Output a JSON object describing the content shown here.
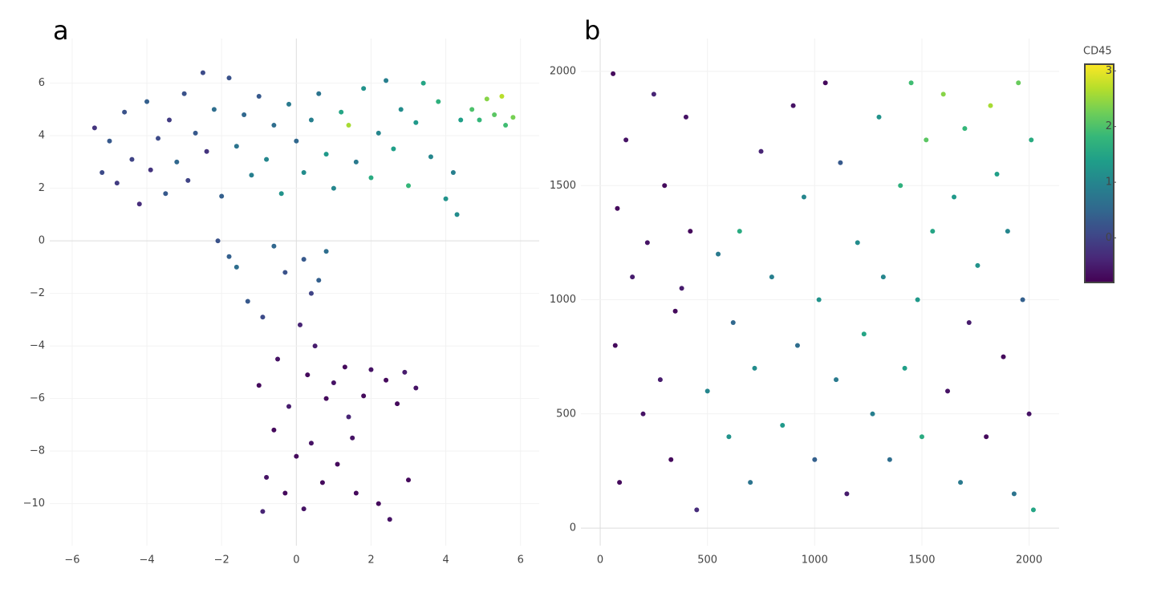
{
  "chart_data": [
    {
      "type": "scatter",
      "panel_label": "a",
      "xlim": [
        -6.6,
        6.5
      ],
      "ylim": [
        -11.6,
        7.7
      ],
      "xticks": [
        {
          "value": -6,
          "label": "−6"
        },
        {
          "value": -4,
          "label": "−4"
        },
        {
          "value": -2,
          "label": "−2"
        },
        0,
        2,
        4,
        6
      ],
      "yticks": [
        {
          "value": -10,
          "label": "−10"
        },
        {
          "value": -8,
          "label": "−8"
        },
        {
          "value": -6,
          "label": "−6"
        },
        {
          "value": -4,
          "label": "−4"
        },
        {
          "value": -2,
          "label": "−2"
        },
        0,
        2,
        4,
        6
      ],
      "grid": true,
      "zeroline": true,
      "colorscale": "viridis",
      "x": [
        -5.4,
        -5.2,
        -5.0,
        -4.8,
        -4.6,
        -4.4,
        -4.2,
        -4.0,
        -3.9,
        -3.7,
        -3.5,
        -3.4,
        -3.2,
        -3.0,
        -2.9,
        -2.7,
        -2.5,
        -2.4,
        -2.2,
        -2.0,
        -1.8,
        -1.6,
        -1.4,
        -1.2,
        -1.0,
        -0.8,
        -0.6,
        -0.4,
        -0.2,
        0.0,
        0.2,
        0.4,
        0.6,
        0.8,
        1.0,
        1.2,
        1.4,
        1.6,
        1.8,
        2.0,
        2.2,
        2.4,
        2.6,
        2.8,
        3.0,
        3.2,
        3.4,
        3.6,
        3.8,
        4.0,
        4.2,
        4.3,
        4.4,
        4.7,
        4.9,
        5.1,
        5.3,
        5.5,
        5.6,
        5.8,
        -2.1,
        -1.8,
        -1.6,
        -1.3,
        -0.9,
        -0.6,
        -0.3,
        0.2,
        0.4,
        0.6,
        0.8,
        -1.0,
        -0.8,
        -0.9,
        -0.6,
        -0.5,
        -0.3,
        -0.2,
        0.0,
        0.1,
        0.2,
        0.3,
        0.4,
        0.5,
        0.7,
        0.8,
        1.0,
        1.1,
        1.3,
        1.4,
        1.6,
        1.8,
        2.0,
        2.2,
        2.4,
        2.5,
        2.7,
        2.9,
        3.0,
        3.2,
        1.5
      ],
      "y": [
        4.3,
        2.6,
        3.8,
        2.2,
        4.9,
        3.1,
        1.4,
        5.3,
        2.7,
        3.9,
        1.8,
        4.6,
        3.0,
        5.6,
        2.3,
        4.1,
        6.4,
        3.4,
        5.0,
        1.7,
        6.2,
        3.6,
        4.8,
        2.5,
        5.5,
        3.1,
        4.4,
        1.8,
        5.2,
        3.8,
        2.6,
        4.6,
        5.6,
        3.3,
        2.0,
        4.9,
        4.4,
        3.0,
        5.8,
        2.4,
        4.1,
        6.1,
        3.5,
        5.0,
        2.1,
        4.5,
        6.0,
        3.2,
        5.3,
        1.6,
        2.6,
        1.0,
        4.6,
        5.0,
        4.6,
        5.4,
        4.8,
        5.5,
        4.4,
        4.7,
        0.0,
        -0.6,
        -1.0,
        -2.3,
        -2.9,
        -0.2,
        -1.2,
        -0.7,
        -2.0,
        -1.5,
        -0.4,
        -5.5,
        -9.0,
        -10.3,
        -7.2,
        -4.5,
        -9.6,
        -6.3,
        -8.2,
        -3.2,
        -10.2,
        -5.1,
        -7.7,
        -4.0,
        -9.2,
        -6.0,
        -5.4,
        -8.5,
        -4.8,
        -6.7,
        -9.6,
        -5.9,
        -4.9,
        -10.0,
        -5.3,
        -10.6,
        -6.2,
        -5.0,
        -9.1,
        -5.6,
        -7.5
      ],
      "color_values": [
        -0.2,
        0.1,
        0.3,
        -0.1,
        0.2,
        0.0,
        -0.3,
        0.4,
        -0.2,
        0.1,
        0.3,
        -0.1,
        0.5,
        0.2,
        0.0,
        0.3,
        0.1,
        -0.2,
        0.6,
        0.4,
        0.2,
        0.7,
        0.5,
        0.9,
        0.3,
        1.0,
        0.6,
        1.2,
        0.8,
        0.5,
        1.1,
        0.9,
        0.7,
        1.3,
        1.0,
        1.5,
        2.6,
        0.8,
        1.2,
        1.6,
        1.0,
        0.9,
        1.4,
        1.1,
        1.8,
        1.3,
        1.5,
        1.0,
        1.7,
        1.2,
        0.9,
        1.1,
        1.4,
        2.0,
        1.8,
        2.4,
        2.1,
        2.7,
        1.9,
        2.3,
        0.2,
        0.4,
        0.6,
        0.3,
        0.1,
        0.5,
        0.2,
        0.3,
        0.0,
        0.4,
        0.6,
        -0.7,
        -0.6,
        -0.4,
        -0.7,
        -0.6,
        -0.7,
        -0.5,
        -0.7,
        -0.4,
        -0.6,
        -0.7,
        -0.6,
        -0.5,
        -0.7,
        -0.7,
        -0.6,
        -0.7,
        -0.7,
        -0.4,
        -0.7,
        -0.7,
        -0.6,
        -0.7,
        -0.7,
        -0.6,
        -0.7,
        -0.5,
        -0.7,
        -0.6,
        -0.6
      ]
    },
    {
      "type": "scatter",
      "panel_label": "b",
      "xlim": [
        -90,
        2140
      ],
      "ylim": [
        -77,
        2144
      ],
      "xticks": [
        0,
        500,
        1000,
        1500,
        2000
      ],
      "yticks": [
        0,
        500,
        1000,
        1500,
        2000
      ],
      "grid": true,
      "zeroline": true,
      "colorscale": "viridis",
      "colorbar": {
        "title": "CD45",
        "lim": [
          -0.8,
          3.12
        ],
        "ticks": [
          0,
          1,
          2,
          3
        ]
      },
      "x": [
        60,
        120,
        80,
        150,
        70,
        200,
        90,
        250,
        300,
        220,
        350,
        280,
        330,
        400,
        420,
        450,
        380,
        500,
        550,
        600,
        620,
        650,
        700,
        720,
        750,
        800,
        850,
        900,
        920,
        950,
        1000,
        1020,
        1050,
        1100,
        1120,
        1150,
        1200,
        1230,
        1270,
        1300,
        1320,
        1350,
        1400,
        1420,
        1450,
        1480,
        1500,
        1520,
        1550,
        1600,
        1620,
        1650,
        1680,
        1700,
        1720,
        1760,
        1800,
        1820,
        1850,
        1880,
        1900,
        1930,
        1950,
        1970,
        2000,
        2010,
        2020
      ],
      "y": [
        1990,
        1700,
        1400,
        1100,
        800,
        500,
        200,
        1900,
        1500,
        1250,
        950,
        650,
        300,
        1800,
        1300,
        80,
        1050,
        600,
        1200,
        400,
        900,
        1300,
        200,
        700,
        1650,
        1100,
        450,
        1850,
        800,
        1450,
        300,
        1000,
        1950,
        650,
        1600,
        150,
        1250,
        850,
        500,
        1800,
        1100,
        300,
        1500,
        700,
        1950,
        1000,
        400,
        1700,
        1300,
        1900,
        600,
        1450,
        200,
        1750,
        900,
        1150,
        400,
        1850,
        1550,
        750,
        1300,
        150,
        1950,
        1000,
        500,
        1700,
        80
      ],
      "color_values": [
        -0.7,
        -0.6,
        -0.7,
        -0.5,
        -0.7,
        -0.6,
        -0.7,
        -0.4,
        -0.7,
        -0.6,
        -0.7,
        -0.5,
        -0.7,
        -0.6,
        -0.7,
        -0.3,
        -0.5,
        1.0,
        0.8,
        1.2,
        0.5,
        1.6,
        0.7,
        1.1,
        -0.4,
        0.9,
        1.3,
        -0.6,
        0.6,
        1.0,
        0.4,
        1.2,
        -0.7,
        0.8,
        0.3,
        -0.5,
        1.1,
        1.5,
        0.9,
        1.2,
        1.0,
        0.6,
        1.7,
        1.4,
        1.9,
        1.3,
        1.6,
        2.1,
        1.5,
        2.4,
        -0.6,
        1.3,
        0.8,
        1.8,
        -0.5,
        1.2,
        -0.7,
        2.6,
        1.4,
        -0.7,
        1.0,
        0.7,
        2.2,
        0.4,
        -0.6,
        1.6,
        1.5
      ]
    }
  ]
}
